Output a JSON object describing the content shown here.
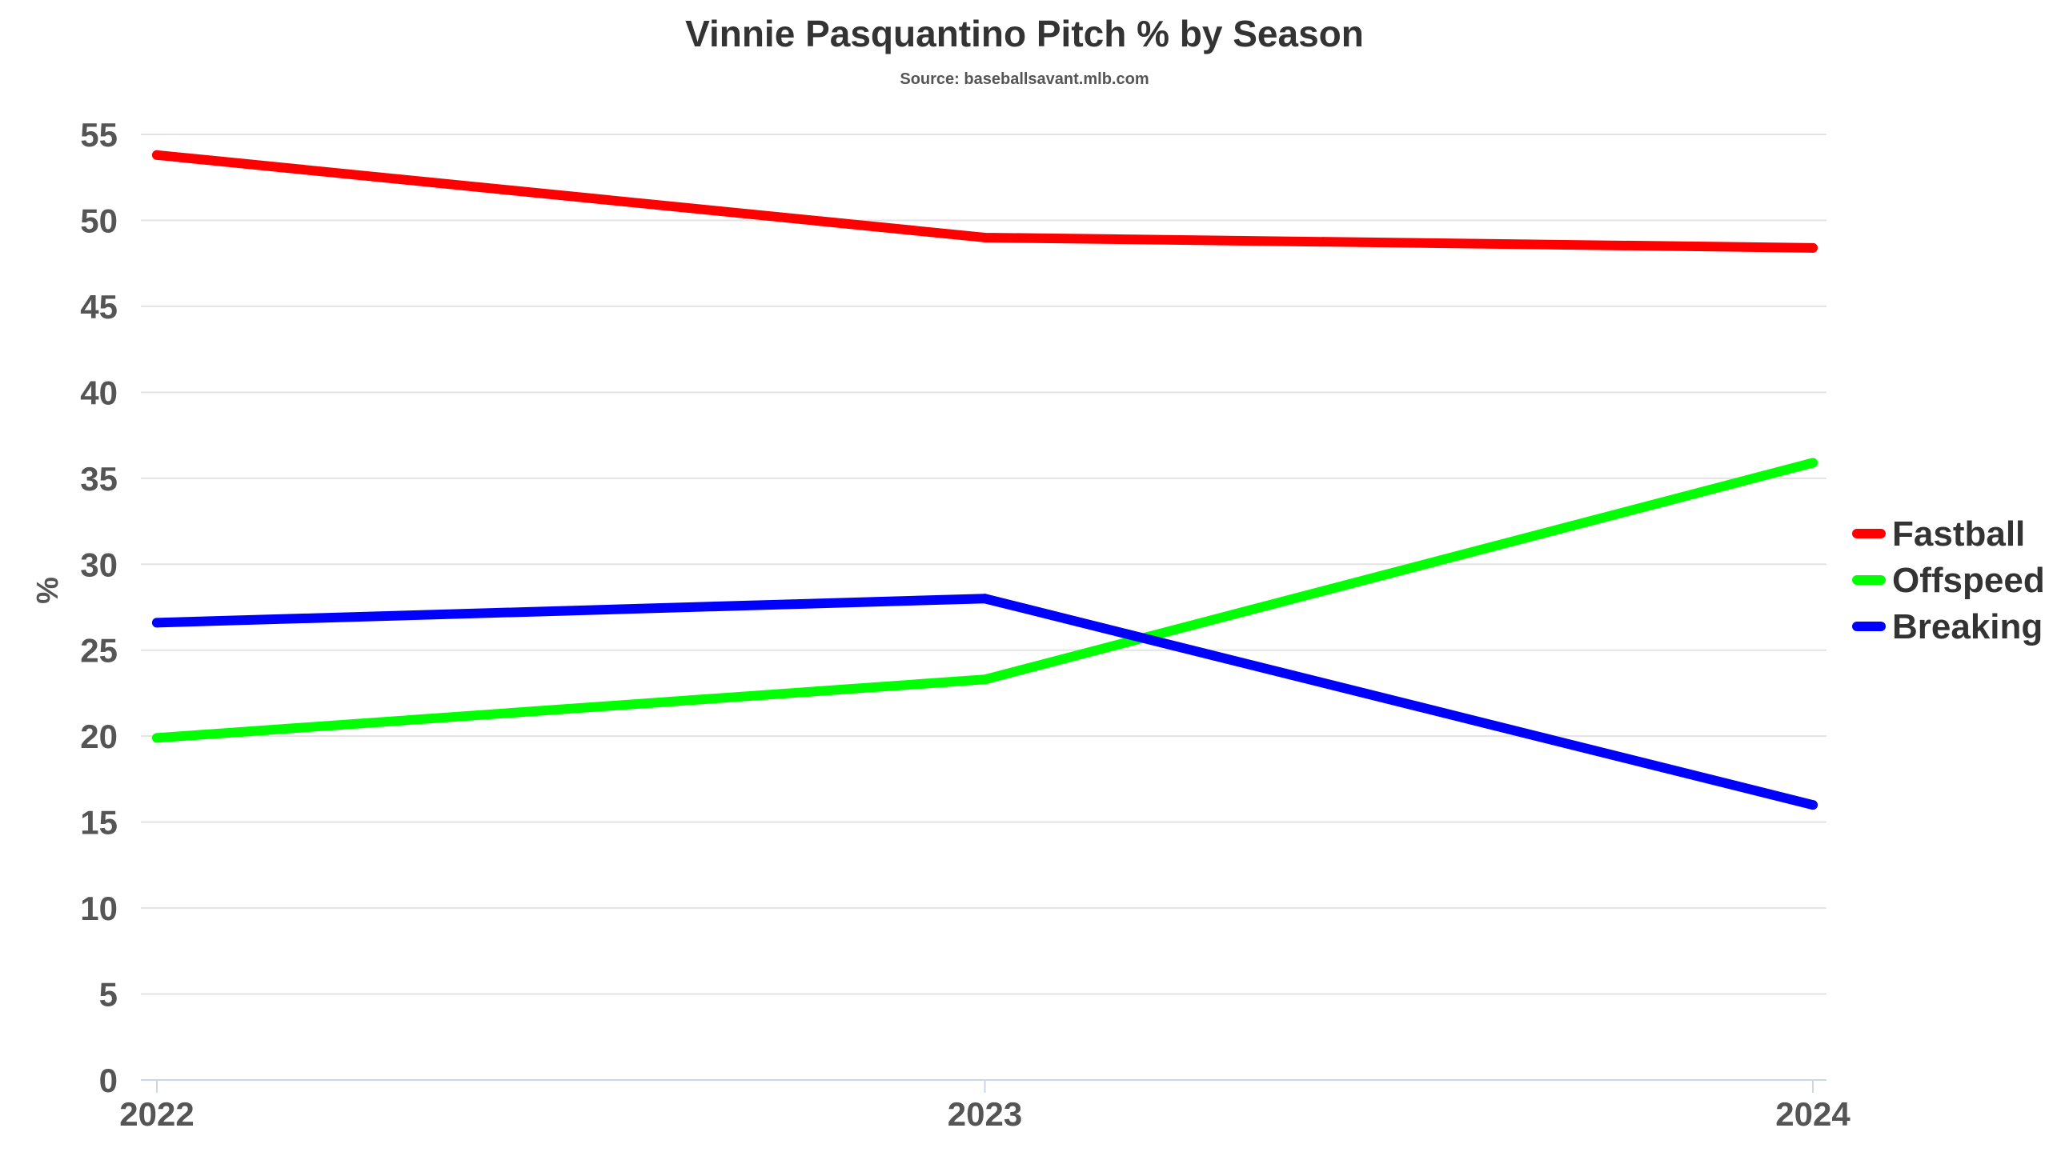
{
  "chart_data": {
    "type": "line",
    "title": "Vinnie Pasquantino Pitch % by Season",
    "subtitle": "Source: baseballsavant.mlb.com",
    "xlabel": "",
    "ylabel": "%",
    "categories": [
      "2022",
      "2023",
      "2024"
    ],
    "ylim": [
      0,
      55
    ],
    "yticks": [
      "0",
      "5",
      "10",
      "15",
      "20",
      "25",
      "30",
      "35",
      "40",
      "45",
      "50",
      "55"
    ],
    "grid": true,
    "legend_position": "right",
    "series": [
      {
        "name": "Fastball",
        "color": "#ff0000",
        "values": [
          53.8,
          49.0,
          48.4
        ]
      },
      {
        "name": "Offspeed",
        "color": "#00ff00",
        "values": [
          19.9,
          23.3,
          35.9
        ]
      },
      {
        "name": "Breaking",
        "color": "#0000ff",
        "values": [
          26.6,
          28.0,
          16.0
        ]
      }
    ]
  }
}
